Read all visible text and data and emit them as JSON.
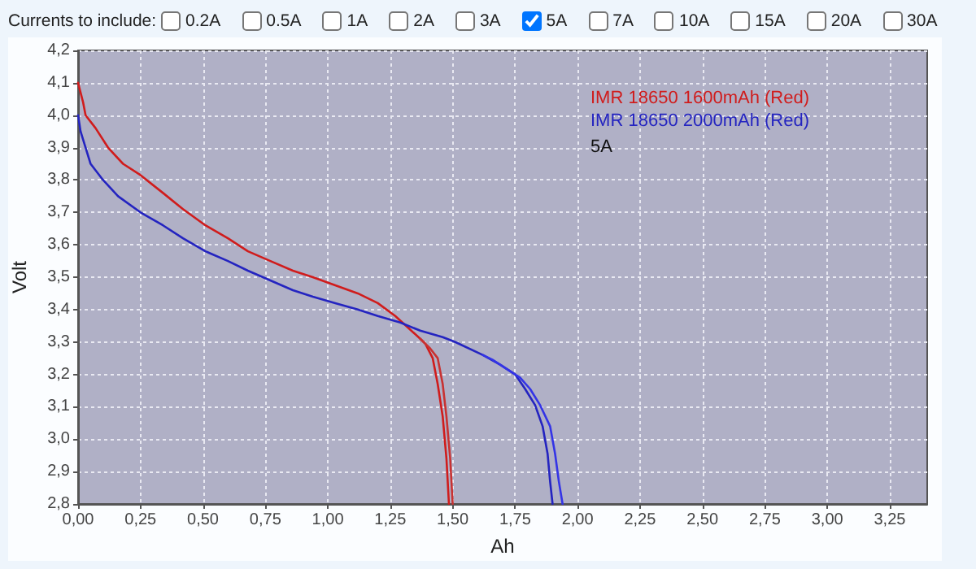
{
  "chart_data": {
    "type": "line",
    "xlabel": "Ah",
    "ylabel": "Volt",
    "xlim": [
      0,
      3.4
    ],
    "xticks": [
      {
        "value": 0,
        "label": "0,00"
      },
      {
        "value": 0.25,
        "label": "0,25"
      },
      {
        "value": 0.5,
        "label": "0,50"
      },
      {
        "value": 0.75,
        "label": "0,75"
      },
      {
        "value": 1,
        "label": "1,00"
      },
      {
        "value": 1.25,
        "label": "1,25"
      },
      {
        "value": 1.5,
        "label": "1,50"
      },
      {
        "value": 1.75,
        "label": "1,75"
      },
      {
        "value": 2,
        "label": "2,00"
      },
      {
        "value": 2.25,
        "label": "2,25"
      },
      {
        "value": 2.5,
        "label": "2,50"
      },
      {
        "value": 2.75,
        "label": "2,75"
      },
      {
        "value": 3,
        "label": "3,00"
      },
      {
        "value": 3.25,
        "label": "3,25"
      }
    ],
    "ylim": [
      2.8,
      4.2
    ],
    "yticks": [
      {
        "value": 2.8,
        "label": "2,8"
      },
      {
        "value": 2.9,
        "label": "2,9"
      },
      {
        "value": 3,
        "label": "3,0"
      },
      {
        "value": 3.1,
        "label": "3,1"
      },
      {
        "value": 3.2,
        "label": "3,2"
      },
      {
        "value": 3.3,
        "label": "3,3"
      },
      {
        "value": 3.4,
        "label": "3,4"
      },
      {
        "value": 3.5,
        "label": "3,5"
      },
      {
        "value": 3.6,
        "label": "3,6"
      },
      {
        "value": 3.7,
        "label": "3,7"
      },
      {
        "value": 3.8,
        "label": "3,8"
      },
      {
        "value": 3.9,
        "label": "3,9"
      },
      {
        "value": 4,
        "label": "4,0"
      },
      {
        "value": 4.1,
        "label": "4,1"
      },
      {
        "value": 4.2,
        "label": "4,2"
      }
    ],
    "grid": true,
    "legend": "top right",
    "marker": "none",
    "line_style": "solid",
    "annotations": [
      "Currents to include:",
      "0.2A",
      "0.5A",
      "1A",
      "2A",
      "3A",
      "5A",
      "7A",
      "10A",
      "15A",
      "20A",
      "30A",
      "5A"
    ],
    "series": [
      {
        "name": "IMR 18650 1600mAh (Red)",
        "color": "#d01c1c",
        "x": [
          0,
          0.01,
          0.02,
          0.03,
          0.07,
          0.12,
          0.18,
          0.25,
          0.34,
          0.42,
          0.51,
          0.6,
          0.68,
          0.77,
          0.86,
          0.94,
          1.03,
          1.12,
          1.2,
          1.27,
          1.32,
          1.37,
          1.39,
          1.42,
          1.44,
          1.46,
          1.475,
          1.485
        ],
        "values": [
          4.1,
          4.07,
          4.04,
          4.0,
          3.96,
          3.9,
          3.85,
          3.815,
          3.76,
          3.71,
          3.66,
          3.62,
          3.58,
          3.55,
          3.52,
          3.5,
          3.475,
          3.45,
          3.42,
          3.38,
          3.345,
          3.31,
          3.295,
          3.25,
          3.17,
          3.07,
          2.94,
          2.8
        ]
      },
      {
        "color": "#c83232",
        "x": [
          1.37,
          1.41,
          1.44,
          1.46,
          1.475,
          1.49,
          1.5
        ],
        "values": [
          3.31,
          3.28,
          3.25,
          3.17,
          3.07,
          2.94,
          2.8
        ]
      },
      {
        "name": "IMR 18650 2000mAh (Red)",
        "color": "#2424c0",
        "x": [
          0,
          0.01,
          0.03,
          0.05,
          0.1,
          0.16,
          0.25,
          0.34,
          0.42,
          0.51,
          0.6,
          0.68,
          0.77,
          0.86,
          0.94,
          1.03,
          1.12,
          1.2,
          1.29,
          1.37,
          1.46,
          1.51,
          1.62,
          1.69,
          1.75,
          1.79,
          1.83,
          1.86,
          1.88,
          1.89,
          1.9
        ],
        "values": [
          4.0,
          3.95,
          3.9,
          3.85,
          3.8,
          3.75,
          3.7,
          3.66,
          3.62,
          3.58,
          3.55,
          3.52,
          3.49,
          3.46,
          3.44,
          3.42,
          3.4,
          3.38,
          3.36,
          3.335,
          3.315,
          3.3,
          3.26,
          3.23,
          3.2,
          3.155,
          3.105,
          3.04,
          2.955,
          2.87,
          2.8
        ]
      },
      {
        "color": "#3434e6",
        "x": [
          1.62,
          1.66,
          1.71,
          1.77,
          1.81,
          1.85,
          1.89,
          1.91,
          1.925,
          1.94
        ],
        "values": [
          3.26,
          3.245,
          3.22,
          3.19,
          3.155,
          3.105,
          3.04,
          2.955,
          2.87,
          2.8
        ]
      }
    ]
  }
}
